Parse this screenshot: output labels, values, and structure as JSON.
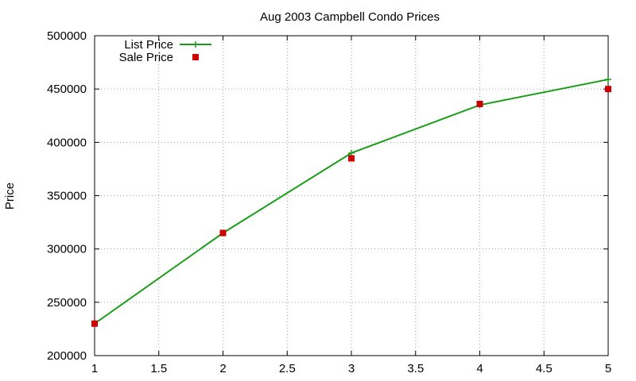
{
  "chart_data": {
    "type": "line",
    "title": "Aug 2003 Campbell Condo Prices",
    "xlabel": "",
    "ylabel": "Price",
    "xlim": [
      1,
      5
    ],
    "ylim": [
      200000,
      500000
    ],
    "xticks": [
      "1",
      "1.5",
      "2",
      "2.5",
      "3",
      "3.5",
      "4",
      "4.5",
      "5"
    ],
    "yticks": [
      "200000",
      "250000",
      "300000",
      "350000",
      "400000",
      "450000",
      "500000"
    ],
    "grid": true,
    "legend_position": "top-left",
    "x": [
      1,
      2,
      3,
      4,
      5
    ],
    "series": [
      {
        "name": "List Price",
        "style": "line-with-plus-markers",
        "color": "#1a9e1a",
        "values": [
          230000,
          315000,
          390000,
          435000,
          459000
        ]
      },
      {
        "name": "Sale Price",
        "style": "square-markers",
        "color": "#cc0000",
        "values": [
          230000,
          315000,
          385000,
          436000,
          450000
        ]
      }
    ]
  }
}
